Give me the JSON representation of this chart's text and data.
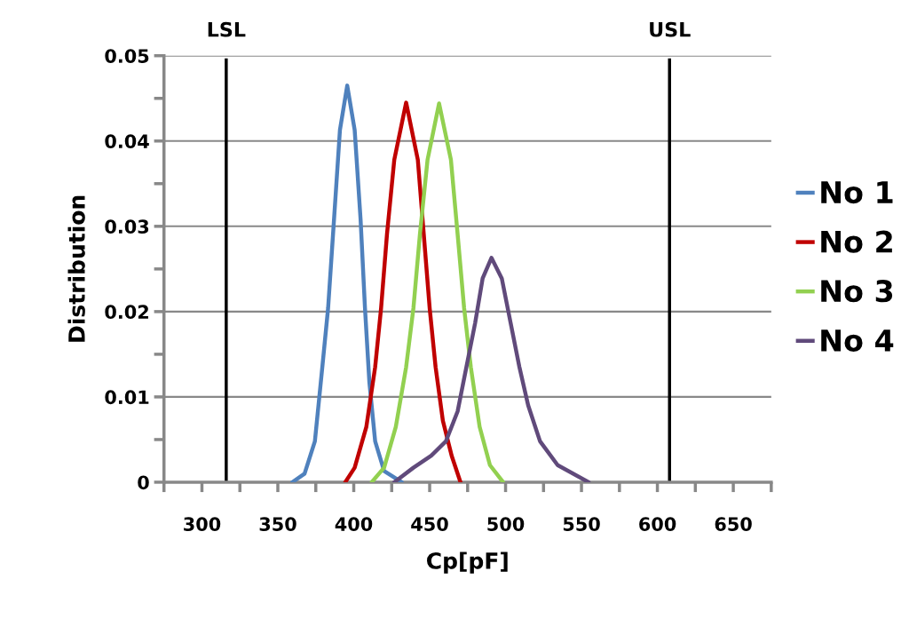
{
  "chart_data": {
    "type": "line",
    "xlabel": "Cp[pF]",
    "ylabel": "Distribution",
    "xlim": [
      275,
      675
    ],
    "xticks": [
      {
        "value": 275,
        "label": null
      },
      300,
      {
        "value": 325,
        "label": null
      },
      350,
      {
        "value": 375,
        "label": null
      },
      400,
      {
        "value": 425,
        "label": null
      },
      450,
      {
        "value": 475,
        "label": null
      },
      500,
      {
        "value": 525,
        "label": null
      },
      550,
      {
        "value": 575,
        "label": null
      },
      600,
      {
        "value": 625,
        "label": null
      },
      650,
      {
        "value": 675,
        "label": null
      }
    ],
    "ylim": [
      0,
      0.05
    ],
    "yticks": [
      0,
      {
        "value": 0.005,
        "label": null
      },
      0.01,
      {
        "value": 0.015,
        "label": null
      },
      0.02,
      {
        "value": 0.025,
        "label": null
      },
      0.03,
      {
        "value": 0.035,
        "label": null
      },
      0.04,
      {
        "value": 0.045,
        "label": null
      },
      0.05
    ],
    "grid": "y",
    "legend": "right",
    "marker": "none",
    "line_style": "solid",
    "ref_lines": [
      {
        "axis": "x",
        "value": 316,
        "label": "LSL",
        "color": "#000000"
      },
      {
        "axis": "x",
        "value": 608,
        "label": "USL",
        "color": "#000000"
      }
    ],
    "series": [
      {
        "name": "No 1",
        "color": "#4f81bd",
        "x": [
          359.5,
          367.6,
          374.4,
          379.3,
          383.1,
          387,
          390.9,
          395.7,
          400.6,
          404.5,
          407.4,
          410.3,
          414.1,
          420,
          431.6
        ],
        "values": [
          0,
          0.001,
          0.0048,
          0.0135,
          0.0204,
          0.0308,
          0.0413,
          0.0465,
          0.0413,
          0.0308,
          0.0204,
          0.0117,
          0.0048,
          0.0013,
          0
        ]
      },
      {
        "name": "No 2",
        "color": "#c00000",
        "x": [
          394.4,
          400.6,
          408.3,
          414.1,
          418,
          421.9,
          426.7,
          434.5,
          442.2,
          446.1,
          450,
          453.9,
          458.7,
          464.5,
          470.3
        ],
        "values": [
          0,
          0.0017,
          0.0065,
          0.0135,
          0.0204,
          0.0291,
          0.0378,
          0.0445,
          0.0378,
          0.0291,
          0.0204,
          0.0135,
          0.0072,
          0.0031,
          0
        ]
      },
      {
        "name": "No 3",
        "color": "#92d050",
        "x": [
          411.8,
          420,
          427.7,
          434.5,
          439.3,
          443.6,
          448.6,
          456.2,
          464,
          468.4,
          472.7,
          477.1,
          482.9,
          489.7,
          498.4
        ],
        "values": [
          0,
          0.0017,
          0.0065,
          0.0135,
          0.0204,
          0.0291,
          0.0378,
          0.0444,
          0.0378,
          0.0291,
          0.0204,
          0.0135,
          0.0065,
          0.002,
          0
        ]
      },
      {
        "name": "No 4",
        "color": "#604a7b",
        "x": [
          426.7,
          439.3,
          451,
          460.7,
          468.4,
          474.2,
          480,
          484.9,
          490.7,
          497.5,
          503.3,
          509.1,
          514.9,
          522.7,
          534.3,
          554.7
        ],
        "values": [
          0,
          0.0017,
          0.0031,
          0.0048,
          0.0083,
          0.0135,
          0.0187,
          0.0239,
          0.0263,
          0.0239,
          0.0187,
          0.0135,
          0.009,
          0.0048,
          0.002,
          0
        ]
      }
    ]
  }
}
